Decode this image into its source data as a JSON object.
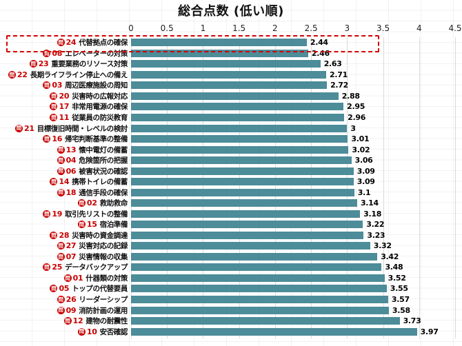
{
  "title": "総合点数 (低い順)",
  "chart_data": {
    "type": "bar",
    "orientation": "horizontal",
    "title": "総合点数 (低い順)",
    "xlabel": "",
    "ylabel": "",
    "xlim": [
      0,
      4.5
    ],
    "x_tick_labels": [
      "0",
      "0.5",
      "1",
      "1.5",
      "2",
      "2.5",
      "3",
      "3.5",
      "4",
      "4.5"
    ],
    "grid": "vertical-on",
    "legend": "none",
    "bar_color": "#4d8c99",
    "badge_color": "#c80000",
    "badge_char": "問",
    "highlight": {
      "row_index": 0,
      "style": "red-dashed-box",
      "color": "#d40000"
    },
    "rows": [
      {
        "num": "24",
        "label": "代替拠点の確保",
        "value": 2.44,
        "value_label": "2.44"
      },
      {
        "num": "08",
        "label": "エレベーターの対策",
        "value": 2.46,
        "value_label": "2.46"
      },
      {
        "num": "23",
        "label": "重要業務のリソース対策",
        "value": 2.63,
        "value_label": "2.63"
      },
      {
        "num": "22",
        "label": "長期ライフライン停止への備え",
        "value": 2.71,
        "value_label": "2.71"
      },
      {
        "num": "03",
        "label": "周辺医療施設の周知",
        "value": 2.72,
        "value_label": "2.72"
      },
      {
        "num": "20",
        "label": "災害時の広報対応",
        "value": 2.88,
        "value_label": "2.88"
      },
      {
        "num": "17",
        "label": "非常用電源の確保",
        "value": 2.95,
        "value_label": "2.95"
      },
      {
        "num": "11",
        "label": "従業員の防災教育",
        "value": 2.96,
        "value_label": "2.96"
      },
      {
        "num": "21",
        "label": "目標復旧時間・レベルの検討",
        "value": 3.0,
        "value_label": "3"
      },
      {
        "num": "16",
        "label": "帰宅判断基準の整備",
        "value": 3.01,
        "value_label": "3.01"
      },
      {
        "num": "13",
        "label": "懐中電灯の備蓄",
        "value": 3.02,
        "value_label": "3.02"
      },
      {
        "num": "04",
        "label": "危険箇所の把握",
        "value": 3.06,
        "value_label": "3.06"
      },
      {
        "num": "06",
        "label": "被害状況の確認",
        "value": 3.09,
        "value_label": "3.09"
      },
      {
        "num": "14",
        "label": "携帯トイレの備蓄",
        "value": 3.09,
        "value_label": "3.09"
      },
      {
        "num": "18",
        "label": "通信手段の確保",
        "value": 3.1,
        "value_label": "3.1"
      },
      {
        "num": "02",
        "label": "救助救命",
        "value": 3.14,
        "value_label": "3.14"
      },
      {
        "num": "19",
        "label": "取引先リストの整備",
        "value": 3.18,
        "value_label": "3.18"
      },
      {
        "num": "15",
        "label": "宿泊準備",
        "value": 3.22,
        "value_label": "3.22"
      },
      {
        "num": "28",
        "label": "災害時の資金調達",
        "value": 3.23,
        "value_label": "3.23"
      },
      {
        "num": "27",
        "label": "災害対応の記録",
        "value": 3.32,
        "value_label": "3.32"
      },
      {
        "num": "07",
        "label": "災害情報の収集",
        "value": 3.42,
        "value_label": "3.42"
      },
      {
        "num": "25",
        "label": "データバックアップ",
        "value": 3.48,
        "value_label": "3.48"
      },
      {
        "num": "01",
        "label": "什器類の対策",
        "value": 3.52,
        "value_label": "3.52"
      },
      {
        "num": "05",
        "label": "トップの代替要員",
        "value": 3.55,
        "value_label": "3.55"
      },
      {
        "num": "26",
        "label": "リーダーシップ",
        "value": 3.57,
        "value_label": "3.57"
      },
      {
        "num": "09",
        "label": "消防計画の運用",
        "value": 3.58,
        "value_label": "3.58"
      },
      {
        "num": "12",
        "label": "建物の耐震性",
        "value": 3.73,
        "value_label": "3.73"
      },
      {
        "num": "10",
        "label": "安否確認",
        "value": 3.97,
        "value_label": "3.97"
      }
    ]
  }
}
